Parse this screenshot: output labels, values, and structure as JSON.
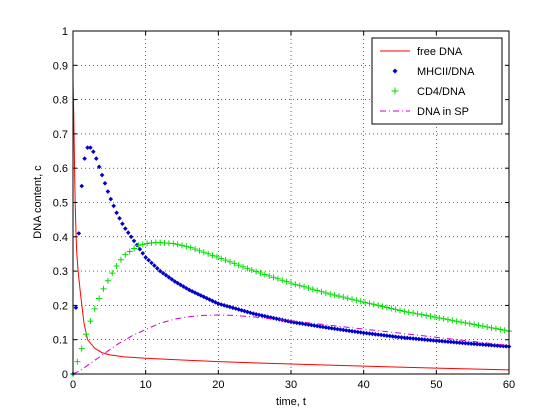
{
  "chart_data": {
    "type": "line",
    "title": "",
    "xlabel": "time, t",
    "ylabel": "DNA content, c",
    "xlim": [
      0,
      60
    ],
    "ylim": [
      0,
      1
    ],
    "xticks": [
      0,
      10,
      20,
      30,
      40,
      50,
      60
    ],
    "yticks": [
      0,
      0.1,
      0.2,
      0.3,
      0.4,
      0.5,
      0.6,
      0.7,
      0.8,
      0.9,
      1
    ],
    "grid": true,
    "legend_position": "top-right",
    "series": [
      {
        "name": "free DNA",
        "style": "solid",
        "marker": "none",
        "color": "#ff0000",
        "x": [
          0,
          0.1,
          0.2,
          0.3,
          0.4,
          0.5,
          0.7,
          1,
          1.5,
          2,
          3,
          4,
          5,
          7,
          10,
          15,
          20,
          30,
          40,
          50,
          60
        ],
        "y": [
          0.85,
          0.76,
          0.62,
          0.5,
          0.42,
          0.36,
          0.3,
          0.24,
          0.15,
          0.1,
          0.075,
          0.062,
          0.056,
          0.05,
          0.046,
          0.041,
          0.036,
          0.029,
          0.023,
          0.017,
          0.012
        ]
      },
      {
        "name": "MHCII/DNA",
        "style": "none",
        "marker": "diamond",
        "color": "#0000cc",
        "x": [
          0,
          0.3,
          0.6,
          1,
          1.5,
          2,
          2.5,
          3,
          3.5,
          4,
          5,
          6,
          7,
          8,
          9,
          10,
          12,
          14,
          16,
          18,
          20,
          25,
          30,
          35,
          40,
          45,
          50,
          55,
          60
        ],
        "y": [
          0,
          0.13,
          0.32,
          0.5,
          0.62,
          0.66,
          0.66,
          0.64,
          0.61,
          0.58,
          0.52,
          0.47,
          0.43,
          0.4,
          0.37,
          0.34,
          0.3,
          0.27,
          0.245,
          0.225,
          0.205,
          0.175,
          0.152,
          0.135,
          0.12,
          0.107,
          0.097,
          0.088,
          0.08
        ]
      },
      {
        "name": "CD4/DNA",
        "style": "none",
        "marker": "plus",
        "color": "#00dd00",
        "x": [
          0,
          1,
          2,
          3,
          4,
          5,
          6,
          7,
          8,
          9,
          10,
          11,
          12,
          14,
          16,
          18,
          20,
          25,
          30,
          35,
          40,
          45,
          50,
          55,
          60
        ],
        "y": [
          0,
          0.06,
          0.13,
          0.19,
          0.24,
          0.28,
          0.315,
          0.345,
          0.36,
          0.375,
          0.38,
          0.383,
          0.383,
          0.38,
          0.37,
          0.355,
          0.34,
          0.3,
          0.265,
          0.235,
          0.21,
          0.185,
          0.165,
          0.145,
          0.125
        ]
      },
      {
        "name": "DNA in SP",
        "style": "dashdot",
        "marker": "none",
        "color": "#cc00cc",
        "x": [
          0,
          1,
          2,
          3,
          4,
          5,
          6,
          8,
          10,
          12,
          14,
          16,
          18,
          20,
          22,
          25,
          30,
          35,
          40,
          45,
          50,
          55,
          60
        ],
        "y": [
          0,
          0.01,
          0.025,
          0.04,
          0.055,
          0.07,
          0.085,
          0.11,
          0.13,
          0.148,
          0.16,
          0.167,
          0.171,
          0.172,
          0.171,
          0.166,
          0.155,
          0.143,
          0.131,
          0.119,
          0.107,
          0.095,
          0.083
        ]
      }
    ]
  }
}
